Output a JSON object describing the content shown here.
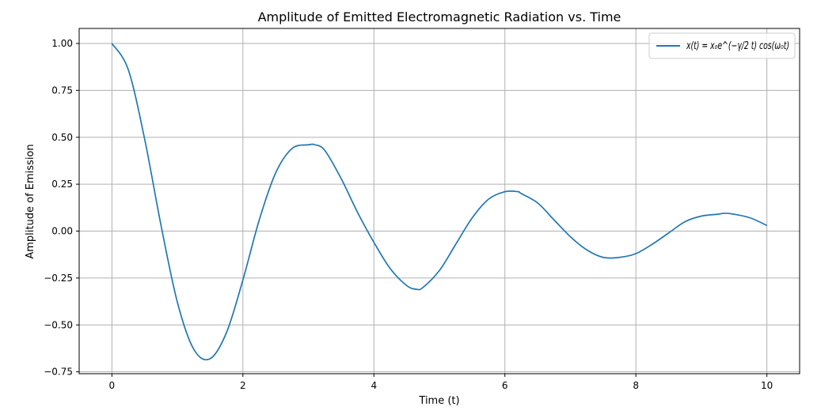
{
  "chart_data": {
    "type": "line",
    "title": "Amplitude of Emitted Electromagnetic Radiation vs. Time",
    "xlabel": "Time (t)",
    "ylabel": "Amplitude of Emission",
    "xlim": [
      -0.5,
      10.5
    ],
    "ylim": [
      -0.76,
      1.08
    ],
    "xticks": [
      0,
      2,
      4,
      6,
      8,
      10
    ],
    "xtick_labels": [
      "0",
      "2",
      "4",
      "6",
      "8",
      "10"
    ],
    "yticks": [
      -0.75,
      -0.5,
      -0.25,
      0.0,
      0.25,
      0.5,
      0.75,
      1.0
    ],
    "ytick_labels": [
      "−0.75",
      "−0.50",
      "−0.25",
      "0.00",
      "0.25",
      "0.50",
      "0.75",
      "1.00"
    ],
    "grid": true,
    "legend_position": "top-right",
    "colors": {
      "series": "#1f77b4",
      "grid": "#b0b0b0",
      "axes": "#000000"
    },
    "series": [
      {
        "name": "x(t) = x₀e^(−γ/2 t) cos(ω₀t)",
        "x": [
          0,
          0.25,
          0.5,
          0.75,
          1.0,
          1.25,
          1.5,
          1.75,
          2.0,
          2.25,
          2.5,
          2.75,
          3.0,
          3.1,
          3.25,
          3.5,
          3.75,
          4.0,
          4.25,
          4.5,
          4.65,
          4.75,
          5.0,
          5.25,
          5.5,
          5.75,
          6.0,
          6.2,
          6.25,
          6.5,
          6.75,
          7.0,
          7.25,
          7.5,
          7.75,
          8.0,
          8.25,
          8.5,
          8.75,
          9.0,
          9.25,
          9.35,
          9.5,
          9.75,
          10.0
        ],
        "y": [
          1.0,
          0.86,
          0.49,
          0.03,
          -0.38,
          -0.63,
          -0.68,
          -0.54,
          -0.26,
          0.06,
          0.31,
          0.44,
          0.46,
          0.46,
          0.43,
          0.28,
          0.1,
          -0.06,
          -0.2,
          -0.29,
          -0.31,
          -0.3,
          -0.21,
          -0.07,
          0.07,
          0.17,
          0.21,
          0.21,
          0.2,
          0.15,
          0.06,
          -0.03,
          -0.1,
          -0.14,
          -0.14,
          -0.12,
          -0.07,
          -0.01,
          0.05,
          0.08,
          0.09,
          0.095,
          0.09,
          0.07,
          0.03
        ]
      }
    ]
  }
}
